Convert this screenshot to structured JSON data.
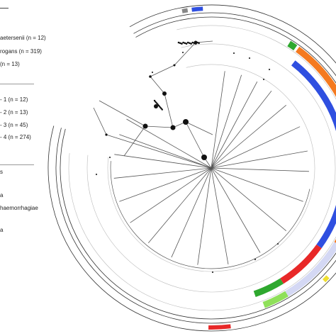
{
  "legend": {
    "species": [
      {
        "label": "aetersenii (n = 12)"
      },
      {
        "label": "rogans (n = 319)"
      },
      {
        "label": "(n = 13)"
      }
    ],
    "groups": [
      {
        "label": "- 1 (n = 12)"
      },
      {
        "label": "- 2 (n = 13)"
      },
      {
        "label": "- 3 (n = 45)"
      },
      {
        "label": "- 4 (n = 274)"
      }
    ],
    "serogroups": [
      {
        "label": "s"
      },
      {
        "label": "a"
      },
      {
        "label": "haemorrhagiae"
      },
      {
        "label": "a"
      }
    ]
  },
  "colors": {
    "blue": "#2f4fe0",
    "orange": "#f47a20",
    "purple": "#7a3fd8",
    "green": "#2ea82e",
    "light_green": "#8fe05a",
    "light_blue": "#d4d8f4",
    "red": "#e82828",
    "yellow": "#f0e030",
    "black": "#111111",
    "gray": "#888888",
    "branch": "#555555"
  },
  "rings": {
    "outer": [
      {
        "from": 93,
        "to": 97,
        "color": "blue"
      },
      {
        "from": 98.5,
        "to": 100.5,
        "color": "gray"
      },
      {
        "from": 269,
        "to": 277,
        "color": "red"
      },
      {
        "from": 315,
        "to": 317,
        "color": "yellow"
      },
      {
        "from": 331,
        "to": 337,
        "color": "black"
      }
    ],
    "ring3": [
      {
        "from": 55,
        "to": 58,
        "color": "green"
      },
      {
        "from": 291,
        "to": 301,
        "color": "light_green"
      },
      {
        "from": 301,
        "to": 329,
        "color": "light_blue"
      },
      {
        "from": 329,
        "to": 349,
        "color": "orange"
      },
      {
        "from": 349,
        "to": 380,
        "color": "purple"
      },
      {
        "from": 380,
        "to": 414,
        "color": "orange"
      }
    ],
    "ring2": [
      {
        "from": 289,
        "to": 302,
        "color": "green"
      },
      {
        "from": 302,
        "to": 324,
        "color": "red"
      },
      {
        "from": 324,
        "to": 412,
        "color": "blue"
      }
    ]
  }
}
